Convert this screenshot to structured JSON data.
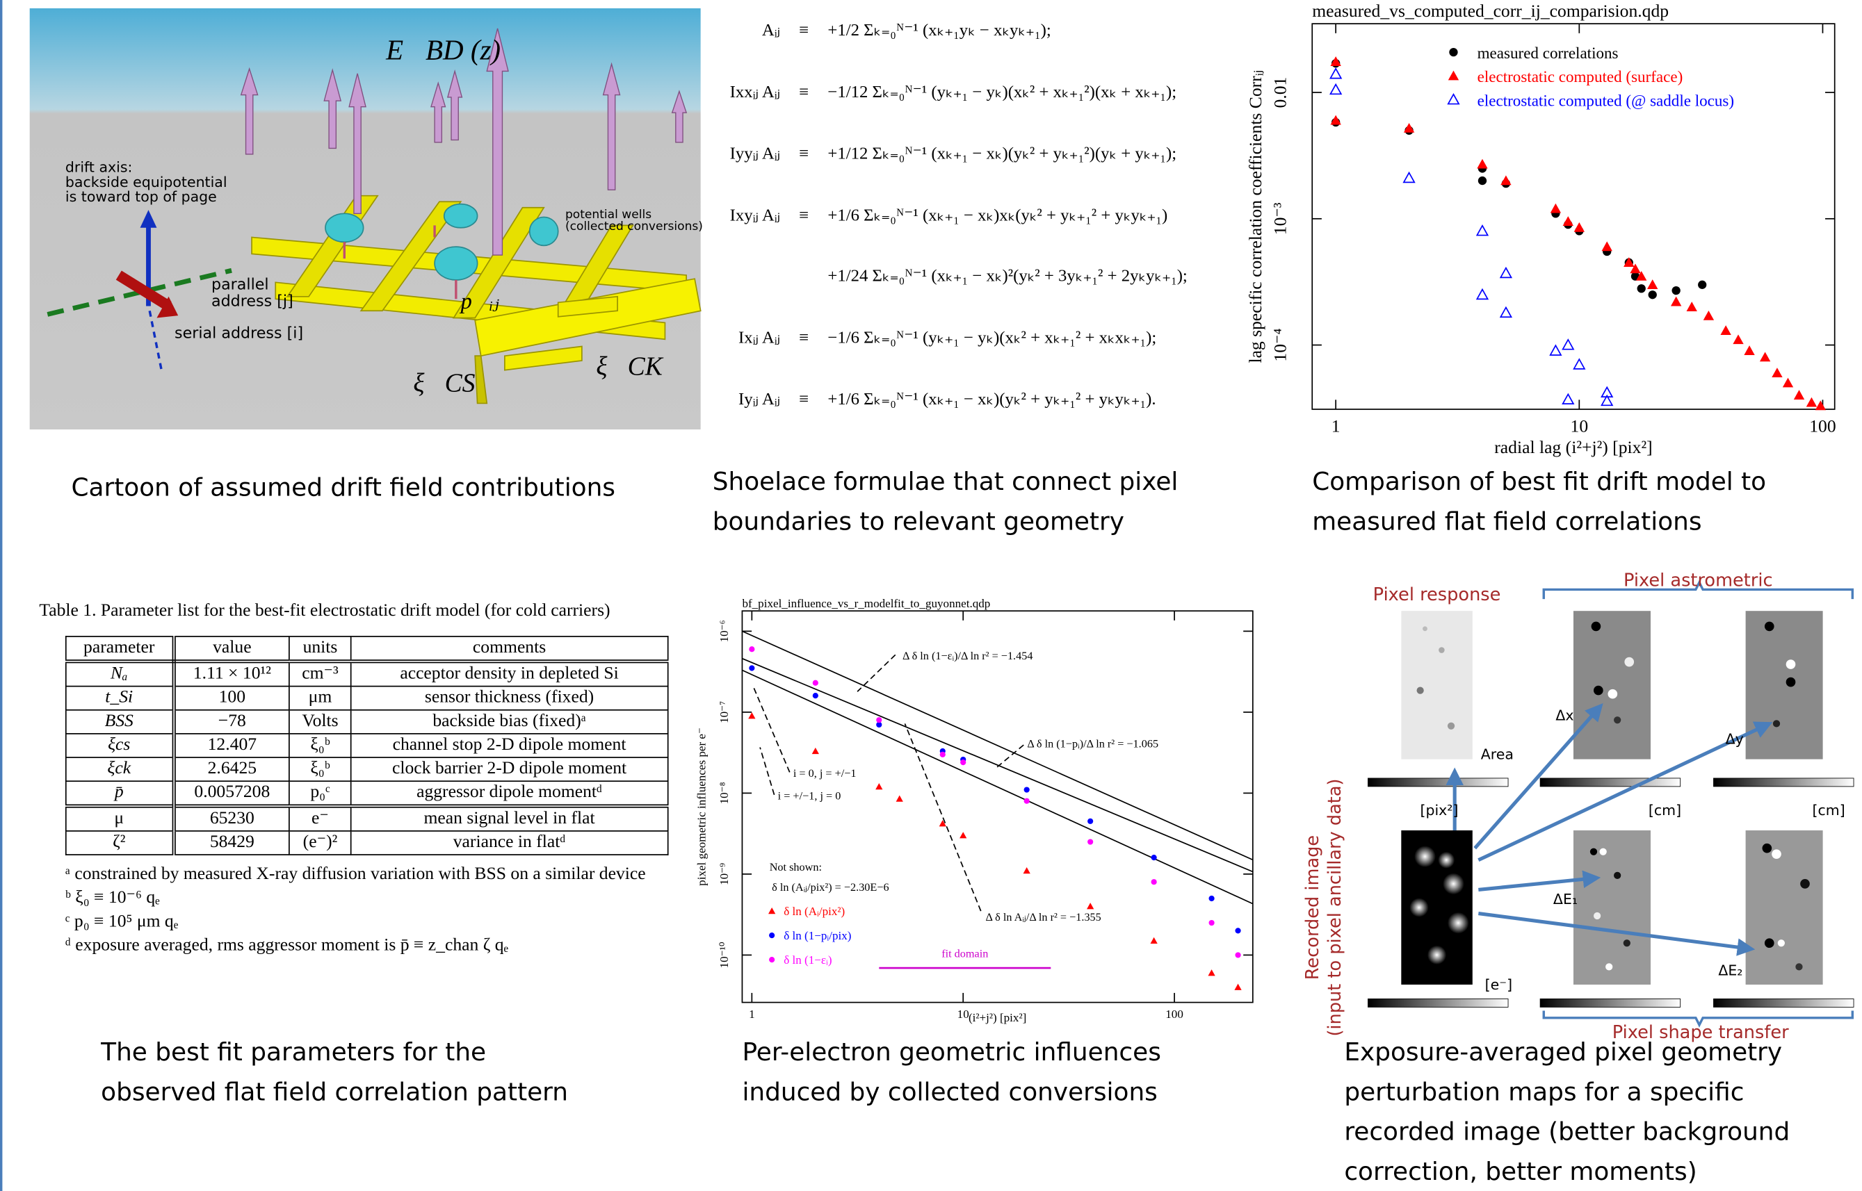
{
  "cartoon": {
    "field_label": "E⃗BD (z)",
    "drift_axis": [
      "drift axis:",
      "backside equipotential",
      "is toward top of page"
    ],
    "potential_wells": [
      "potential wells",
      "(collected conversions)"
    ],
    "parallel_address": [
      "parallel",
      "address [j]"
    ],
    "serial_address": "serial address [i]",
    "dipole": "p⃗ᵢⱼ",
    "channel_stop": "ξ⃗CS",
    "clock_barrier": "ξ⃗CK"
  },
  "formulas": {
    "rows": [
      {
        "label": "Aᵢⱼ",
        "op": "≡",
        "expr": "+1/2 Σₖ₌₀ᴺ⁻¹ (xₖ₊₁yₖ − xₖyₖ₊₁);"
      },
      {
        "label": "Ixxᵢⱼ Aᵢⱼ",
        "op": "≡",
        "expr": "−1/12 Σₖ₌₀ᴺ⁻¹ (yₖ₊₁ − yₖ)(xₖ² + xₖ₊₁²)(xₖ + xₖ₊₁);"
      },
      {
        "label": "Iyyᵢⱼ Aᵢⱼ",
        "op": "≡",
        "expr": "+1/12 Σₖ₌₀ᴺ⁻¹ (xₖ₊₁ − xₖ)(yₖ² + yₖ₊₁²)(yₖ + yₖ₊₁);"
      },
      {
        "label": "Ixyᵢⱼ Aᵢⱼ",
        "op": "≡",
        "expr": "+1/6 Σₖ₌₀ᴺ⁻¹ (xₖ₊₁ − xₖ)xₖ(yₖ² + yₖ₊₁² + yₖyₖ₊₁)"
      },
      {
        "expr": "+1/24 Σₖ₌₀ᴺ⁻¹ (xₖ₊₁ − xₖ)²(yₖ² + 3yₖ₊₁² + 2yₖyₖ₊₁);"
      },
      {
        "label": "Ixᵢⱼ Aᵢⱼ",
        "op": "≡",
        "expr": "−1/6 Σₖ₌₀ᴺ⁻¹ (yₖ₊₁ − yₖ)(xₖ² + xₖ₊₁² + xₖxₖ₊₁);"
      },
      {
        "label": "Iyᵢⱼ Aᵢⱼ",
        "op": "≡",
        "expr": "+1/6 Σₖ₌₀ᴺ⁻¹ (xₖ₊₁ − xₖ)(yₖ² + yₖ₊₁² + yₖyₖ₊₁)."
      }
    ]
  },
  "chart_data": [
    {
      "type": "scatter",
      "title": "measured_vs_computed_corr_ij_comparision.qdp",
      "x_label": "radial lag (i²+j²) [pix²]",
      "y_label": "lag specific correlation coefficients Corrᵢⱼ",
      "xlog": true,
      "ylog": true,
      "xlim": [
        0.8,
        112
      ],
      "ylim": [
        3.1e-05,
        0.035
      ],
      "xticks": [
        1,
        10,
        100
      ],
      "yticks": [
        {
          "value": 0.0001,
          "label": "10⁻⁴"
        },
        {
          "value": 0.001,
          "label": "10⁻³"
        },
        0.01
      ],
      "series": [
        {
          "name": "measured correlations",
          "color": "#000000",
          "marker": "circle",
          "x": [
            1,
            1,
            2,
            4,
            4,
            5,
            8,
            9,
            10,
            13,
            16,
            17,
            18,
            20,
            25,
            32
          ],
          "values": [
            0.017,
            0.0058,
            0.005,
            0.0025,
            0.002,
            0.0019,
            0.0011,
            0.0009,
            0.0008,
            0.00055,
            0.00045,
            0.00035,
            0.00028,
            0.00025,
            0.00027,
            0.0003
          ]
        },
        {
          "name": "electrostatic computed (surface)",
          "color": "#ff0000",
          "marker": "triangle",
          "x": [
            1,
            1,
            2,
            4,
            5,
            8,
            9,
            10,
            13,
            16,
            17,
            18,
            20,
            25,
            29,
            34,
            40,
            45,
            50,
            58,
            65,
            72,
            80,
            90,
            98
          ],
          "values": [
            0.0175,
            0.006,
            0.0052,
            0.0027,
            0.002,
            0.0012,
            0.00095,
            0.00085,
            0.0006,
            0.00045,
            0.0004,
            0.00035,
            0.0003,
            0.00022,
            0.0002,
            0.00017,
            0.00013,
            0.00011,
            9e-05,
            8e-05,
            6e-05,
            5e-05,
            4e-05,
            3.5e-05,
            3.3e-05
          ]
        },
        {
          "name": "electrostatic computed (@ saddle locus)",
          "color": "#0000ff",
          "marker": "open-triangle",
          "x": [
            1,
            1,
            2,
            4,
            4,
            5,
            5,
            8,
            9,
            10,
            13,
            13,
            9
          ],
          "values": [
            0.014,
            0.0105,
            0.0021,
            0.0008,
            0.00025,
            0.00037,
            0.00018,
            9e-05,
            0.0001,
            7e-05,
            4.2e-05,
            3.6e-05,
            3.7e-05
          ]
        }
      ]
    },
    {
      "type": "scatter",
      "title": "bf_pixel_influence_vs_r_modelfit_to_guyonnet.qdp",
      "x_label": "(i²+j²) [pix²]",
      "y_label": "pixel geometric influences per e⁻",
      "xlog": true,
      "ylog": true,
      "xlim": [
        0.9,
        235
      ],
      "ylim": [
        2.6e-11,
        1.78e-06
      ],
      "xticks": [
        1,
        10,
        100
      ],
      "yticks": [
        {
          "value": 1e-10,
          "label": "10⁻¹⁰"
        },
        {
          "value": 1e-09,
          "label": "10⁻⁹"
        },
        {
          "value": 1e-08,
          "label": "10⁻⁸"
        },
        {
          "value": 1e-07,
          "label": "10⁻⁷"
        },
        {
          "value": 1e-06,
          "label": "10⁻⁶"
        }
      ],
      "series": [
        {
          "name": "δ ln (Aᵢ/pix²)",
          "color": "#ff0000",
          "marker": "triangle",
          "x": [
            1,
            2,
            4,
            5,
            8,
            10,
            20,
            40,
            80,
            150,
            200
          ],
          "values": [
            9e-08,
            3.3e-08,
            1.2e-08,
            8.5e-09,
            4.2e-09,
            3e-09,
            1.1e-09,
            4e-10,
            1.5e-10,
            6e-11,
            4e-11
          ]
        },
        {
          "name": "δ ln (1−pᵢ/pix)",
          "color": "#0000ff",
          "marker": "circle",
          "x": [
            1,
            2,
            4,
            8,
            10,
            20,
            40,
            80,
            150,
            200
          ],
          "values": [
            3.5e-07,
            1.6e-07,
            7e-08,
            3.3e-08,
            2.6e-08,
            1.1e-08,
            4.5e-09,
            1.6e-09,
            5e-10,
            2e-10
          ]
        },
        {
          "name": "δ ln (1−εᵢ)",
          "color": "#ff00ff",
          "marker": "circle",
          "x": [
            1,
            2,
            4,
            8,
            10,
            20,
            40,
            80,
            150,
            200
          ],
          "values": [
            6e-07,
            2.3e-07,
            8e-08,
            3e-08,
            2.4e-08,
            8e-09,
            2.5e-09,
            8e-10,
            2.5e-10,
            1e-10
          ]
        }
      ],
      "fit_lines": [
        {
          "color": "#000000",
          "x": [
            0.9,
            235
          ],
          "values": [
            1e-06,
            1.5e-09
          ]
        },
        {
          "color": "#000000",
          "x": [
            0.9,
            235
          ],
          "values": [
            4.6e-07,
            1.07e-09
          ]
        },
        {
          "color": "#000000",
          "x": [
            0.9,
            235
          ],
          "values": [
            3.3e-07,
            4.3e-10
          ]
        }
      ],
      "annotations": [
        "Δ δ ln (1−εᵢ)/Δ ln r² = −1.454",
        "Δ δ ln (1−pᵢ)/Δ ln r² = −1.065",
        "i = 0, j = +/−1",
        "i = +/−1, j = 0",
        "Δ δ ln Aᵢⱼ/Δ ln r² = −1.355",
        "Not shown:",
        "δ ln (Aᵢⱼ/pix²) = −2.30E−6"
      ],
      "fit_domain": {
        "label": "fit domain",
        "range": [
          4,
          26
        ],
        "color": "#cc00cc"
      }
    }
  ],
  "table": {
    "title": "Table 1.  Parameter list for the best-fit electrostatic drift model (for cold carriers)",
    "header": [
      "parameter",
      "value",
      "units",
      "comments"
    ],
    "rows": [
      [
        "Nₐ",
        "1.11 × 10¹²",
        "cm⁻³",
        "acceptor density in depleted Si"
      ],
      [
        "t_Si",
        "100",
        "μm",
        "sensor thickness (fixed)"
      ],
      [
        "BSS",
        "−78",
        "Volts",
        "backside bias (fixed)ᵃ"
      ],
      [
        "ξcs",
        "12.407",
        "ξ₀ᵇ",
        "channel stop 2-D dipole moment"
      ],
      [
        "ξck",
        "2.6425",
        "ξ₀ᵇ",
        "clock barrier 2-D dipole moment"
      ],
      [
        "p̄",
        "0.0057208",
        "p₀ᶜ",
        "aggressor dipole momentᵈ"
      ],
      [
        "μ",
        "65230",
        "e⁻",
        "mean signal level in flat"
      ],
      [
        "ζ²",
        "58429",
        "(e⁻)²",
        "variance in flatᵈ"
      ]
    ],
    "footnotes": [
      "ᵃ constrained by measured X-ray diffusion variation with BSS on a similar device",
      "ᵇ ξ₀ ≡ 10⁻⁶ qₑ",
      "ᶜ p₀ ≡ 10⁵ μm qₑ",
      "ᵈ exposure averaged, rms aggressor moment is p̄ ≡ z_chan ζ qₑ"
    ]
  },
  "maps": {
    "pixel_response": "Pixel response",
    "pixel_astrometric": "Pixel astrometric",
    "pixel_shape_transfer": "Pixel shape transfer",
    "recorded_image": [
      "Recorded image",
      "(input to pixel ancillary data)"
    ],
    "area": "Area",
    "dx": "Δx",
    "dy": "Δy",
    "de1": "ΔE₁",
    "de2": "ΔE₂",
    "units": [
      "[pix²]",
      "[cm]",
      "[cm]",
      "[e⁻]"
    ]
  },
  "captions": [
    [
      "Cartoon of assumed drift field contributions"
    ],
    [
      "Shoelace formulae that connect pixel",
      "boundaries to relevant geometry"
    ],
    [
      "Comparison of best fit drift model to",
      "measured flat field correlations"
    ],
    [
      "The best fit parameters for the",
      "observed flat field correlation pattern"
    ],
    [
      "Per-electron geometric influences",
      "induced by collected conversions"
    ],
    [
      "Exposure-averaged pixel geometry",
      "perturbation maps for a specific",
      "recorded image (better background",
      "correction, better moments)"
    ]
  ]
}
